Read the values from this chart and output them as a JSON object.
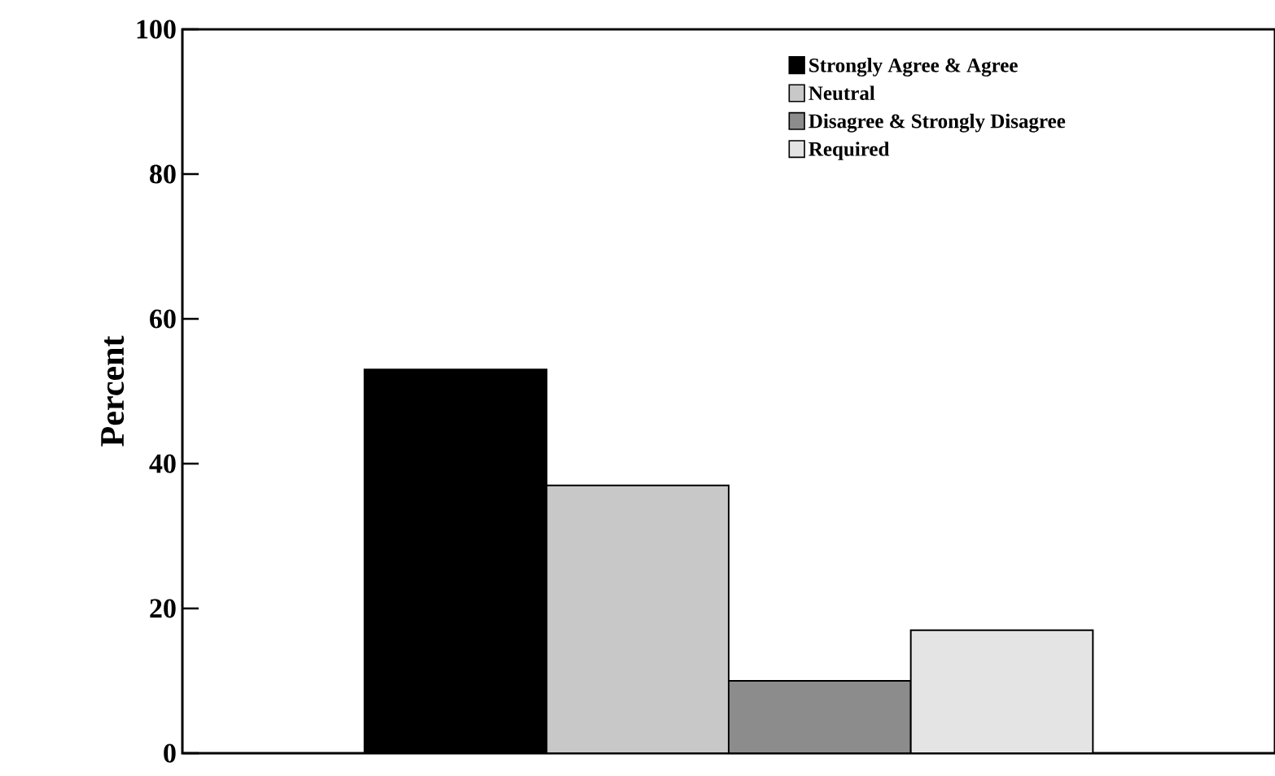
{
  "chart_data": {
    "type": "bar",
    "ylabel": "Percent",
    "categories": [
      null
    ],
    "series": [
      {
        "name": "Strongly Agree & Agree",
        "color": "#000000",
        "values": [
          53
        ]
      },
      {
        "name": "Neutral",
        "color": "#c8c8c8",
        "values": [
          37
        ]
      },
      {
        "name": "Disagree & Strongly Disagree",
        "color": "#8c8c8c",
        "values": [
          10
        ]
      },
      {
        "name": "Required",
        "color": "#e4e4e4",
        "values": [
          17
        ]
      }
    ],
    "ylim": [
      0,
      100
    ],
    "yticks": [
      {
        "value": 0,
        "label": "0"
      },
      {
        "value": 20,
        "label": "20"
      },
      {
        "value": 40,
        "label": "40"
      },
      {
        "value": 60,
        "label": "60"
      },
      {
        "value": 80,
        "label": "80"
      },
      {
        "value": 100,
        "label": "100"
      }
    ],
    "legend": "top right"
  }
}
